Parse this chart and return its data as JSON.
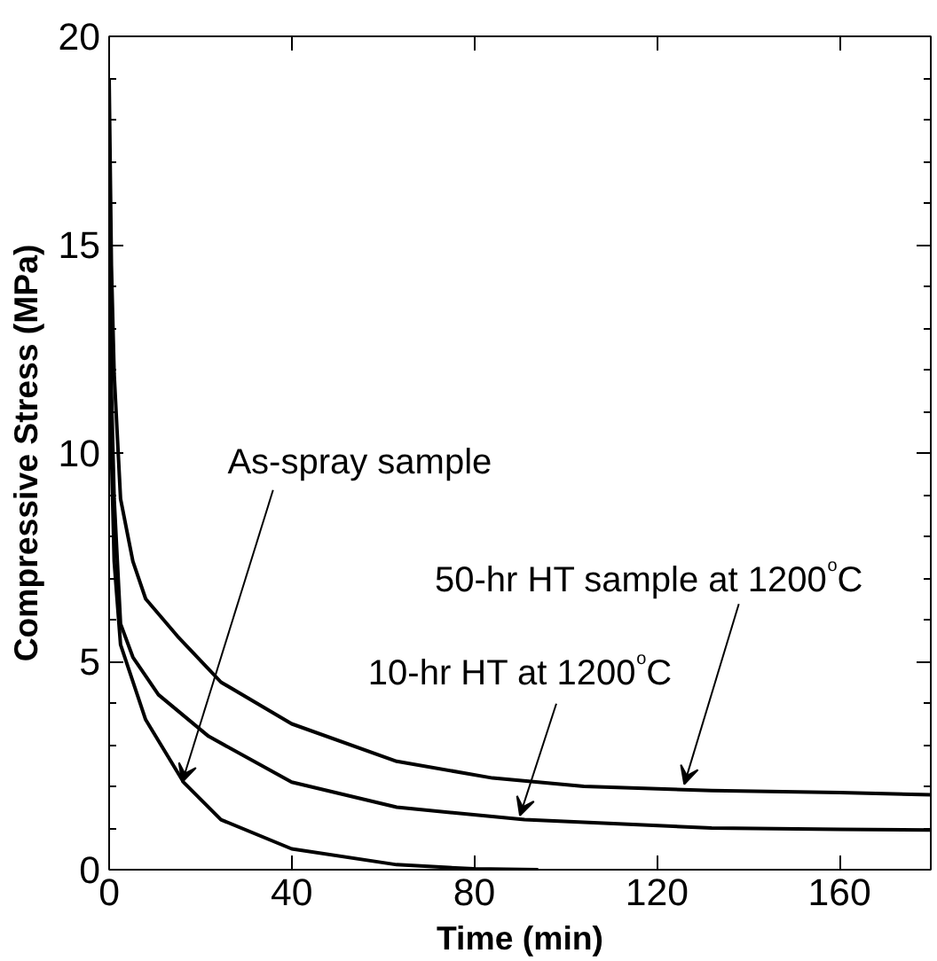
{
  "chart_data": {
    "type": "line",
    "xlabel": "Time (min)",
    "ylabel": "Compressive Stress (MPa)",
    "xlim": [
      0,
      180
    ],
    "ylim": [
      0,
      20
    ],
    "xticks": [
      0,
      40,
      80,
      120,
      160
    ],
    "yticks": [
      0,
      5,
      10,
      15,
      20
    ],
    "grid": false,
    "marker": "none",
    "line_style": "solid",
    "series": [
      {
        "color": "#000000",
        "x": [
          0,
          0.5,
          1.1,
          2.5,
          5.2,
          8,
          15,
          24.5,
          40,
          63,
          84,
          104,
          132,
          160,
          180
        ],
        "values": [
          19,
          14.5,
          11.9,
          8.9,
          7.4,
          6.5,
          5.6,
          4.5,
          3.5,
          2.6,
          2.2,
          2.0,
          1.9,
          1.85,
          1.8
        ]
      },
      {
        "color": "#000000",
        "x": [
          0,
          0.5,
          1.1,
          2.5,
          5.2,
          10.8,
          21.8,
          40,
          63,
          91,
          132,
          160,
          180
        ],
        "values": [
          16,
          11.5,
          8.9,
          5.9,
          5.1,
          4.2,
          3.2,
          2.1,
          1.5,
          1.2,
          1.0,
          0.97,
          0.95
        ]
      },
      {
        "color": "#000000",
        "x": [
          0,
          0.5,
          1.1,
          2.5,
          8,
          16.3,
          24.5,
          40,
          63,
          80,
          94
        ],
        "values": [
          16,
          10,
          7.4,
          5.4,
          3.6,
          2.1,
          1.2,
          0.5,
          0.12,
          0.02,
          0
        ]
      }
    ],
    "annotations": [
      {
        "text": "As-spray sample",
        "x": 16,
        "y": 2.1
      },
      {
        "text": "10-hr HT at 1200$^{o}$C",
        "x": 90,
        "y": 1.3
      },
      {
        "text": "50-hr HT sample at 1200$^{o}$C",
        "x": 126,
        "y": 2.05
      }
    ]
  }
}
